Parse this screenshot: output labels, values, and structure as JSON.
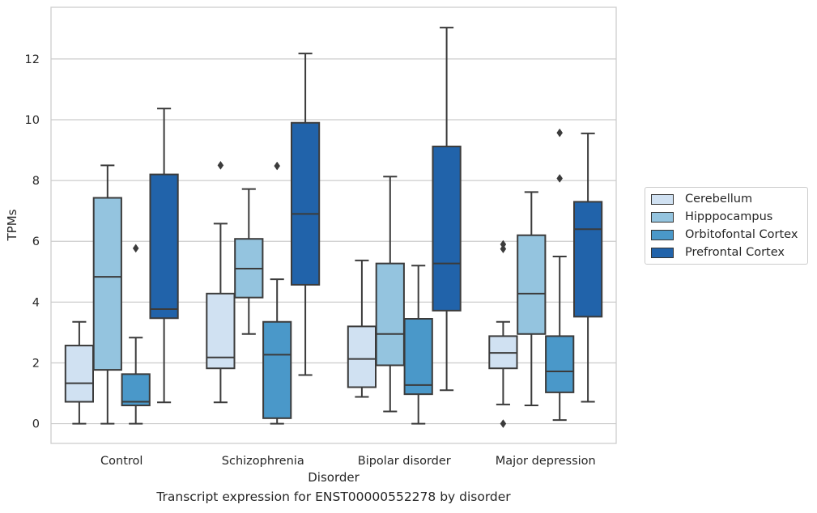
{
  "caption": "Transcript expression for ENST00000552278 by disorder",
  "colors": {
    "Cerebellum": "#d0e1f2",
    "Hipppocampus": "#94c4df",
    "Orbitofontal Cortex": "#4a98c9",
    "Prefrontal Cortex": "#2163aa"
  },
  "chart_data": {
    "type": "box",
    "xlabel": "Disorder",
    "ylabel": "TPMs",
    "ylim": [
      -0.65,
      13.7
    ],
    "yticks": [
      0,
      2,
      4,
      6,
      8,
      10,
      12
    ],
    "grid": "horizontal",
    "legend_position": "right",
    "categories": [
      "Control",
      "Schizophrenia",
      "Bipolar disorder",
      "Major depression"
    ],
    "series": [
      {
        "name": "Cerebellum",
        "boxes": [
          {
            "whisker_low": 0.0,
            "q1": 0.72,
            "median": 1.33,
            "q3": 2.57,
            "whisker_high": 3.35,
            "outliers": []
          },
          {
            "whisker_low": 0.7,
            "q1": 1.82,
            "median": 2.18,
            "q3": 4.28,
            "whisker_high": 6.58,
            "outliers": [
              8.5
            ]
          },
          {
            "whisker_low": 0.88,
            "q1": 1.2,
            "median": 2.13,
            "q3": 3.2,
            "whisker_high": 5.37,
            "outliers": []
          },
          {
            "whisker_low": 0.63,
            "q1": 1.82,
            "median": 2.33,
            "q3": 2.88,
            "whisker_high": 3.35,
            "outliers": [
              0.0,
              5.75,
              5.9
            ]
          }
        ]
      },
      {
        "name": "Hipppocampus",
        "boxes": [
          {
            "whisker_low": 0.0,
            "q1": 1.77,
            "median": 4.83,
            "q3": 7.43,
            "whisker_high": 8.5,
            "outliers": []
          },
          {
            "whisker_low": 2.95,
            "q1": 4.15,
            "median": 5.1,
            "q3": 6.08,
            "whisker_high": 7.72,
            "outliers": []
          },
          {
            "whisker_low": 0.4,
            "q1": 1.92,
            "median": 2.95,
            "q3": 5.27,
            "whisker_high": 8.13,
            "outliers": []
          },
          {
            "whisker_low": 0.6,
            "q1": 2.95,
            "median": 4.28,
            "q3": 6.2,
            "whisker_high": 7.62,
            "outliers": []
          }
        ]
      },
      {
        "name": "Orbitofontal Cortex",
        "boxes": [
          {
            "whisker_low": 0.0,
            "q1": 0.6,
            "median": 0.72,
            "q3": 1.63,
            "whisker_high": 2.83,
            "outliers": [
              5.77
            ]
          },
          {
            "whisker_low": 0.0,
            "q1": 0.18,
            "median": 2.27,
            "q3": 3.35,
            "whisker_high": 4.75,
            "outliers": [
              8.48
            ]
          },
          {
            "whisker_low": 0.0,
            "q1": 0.97,
            "median": 1.27,
            "q3": 3.45,
            "whisker_high": 5.2,
            "outliers": []
          },
          {
            "whisker_low": 0.12,
            "q1": 1.03,
            "median": 1.72,
            "q3": 2.88,
            "whisker_high": 5.5,
            "outliers": [
              8.07,
              9.57
            ]
          }
        ]
      },
      {
        "name": "Prefrontal Cortex",
        "boxes": [
          {
            "whisker_low": 0.7,
            "q1": 3.47,
            "median": 3.77,
            "q3": 8.2,
            "whisker_high": 10.37,
            "outliers": []
          },
          {
            "whisker_low": 1.6,
            "q1": 4.57,
            "median": 6.9,
            "q3": 9.9,
            "whisker_high": 12.18,
            "outliers": []
          },
          {
            "whisker_low": 1.1,
            "q1": 3.72,
            "median": 5.27,
            "q3": 9.12,
            "whisker_high": 13.03,
            "outliers": []
          },
          {
            "whisker_low": 0.72,
            "q1": 3.52,
            "median": 6.4,
            "q3": 7.3,
            "whisker_high": 9.55,
            "outliers": []
          }
        ]
      }
    ]
  }
}
